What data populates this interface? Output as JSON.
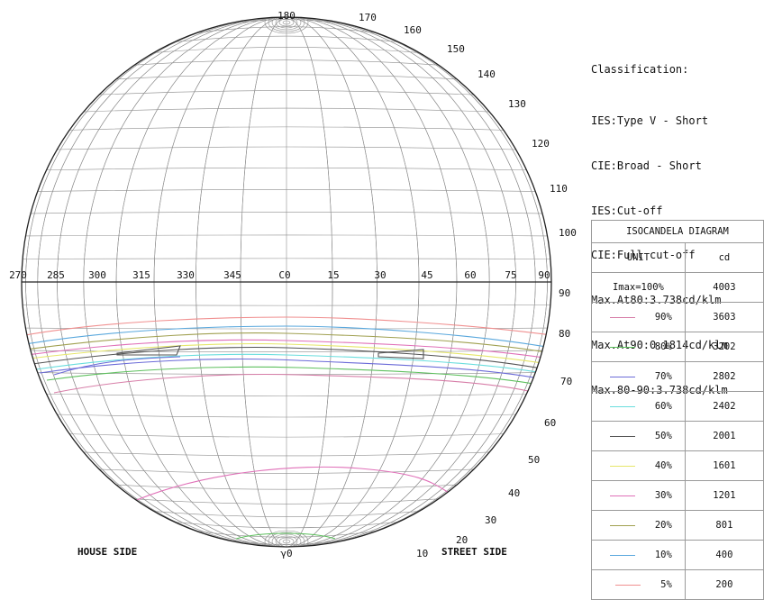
{
  "diagram": {
    "top_label": "180",
    "bottom_label": "γ0",
    "house_side": "HOUSE SIDE",
    "street_side": "STREET SIDE",
    "c_labels": [
      "270",
      "285",
      "300",
      "315",
      "330",
      "345",
      "C0",
      "15",
      "30",
      "45",
      "60",
      "75",
      "90"
    ],
    "gamma_labels": [
      "170",
      "160",
      "150",
      "140",
      "130",
      "120",
      "110",
      "100",
      "90",
      "80",
      "70",
      "60",
      "50",
      "40",
      "30",
      "20",
      "10"
    ]
  },
  "classification": {
    "title": "Classification:",
    "lines": [
      "IES:Type V - Short",
      "CIE:Broad - Short",
      "IES:Cut-off",
      "CIE:Full cut-off",
      "Max.At80:3.738cd/klm",
      "Max.At90:0.1814cd/klm",
      "Max.80-90:3.738cd/klm"
    ]
  },
  "table": {
    "title": "ISOCANDELA DIAGRAM",
    "unit_label": "UNIT",
    "unit_value": "cd",
    "imax_label": "Imax=100%",
    "imax_value": "4003",
    "rows": [
      {
        "pct": "90%",
        "cd": "3603",
        "color": "#d77ea8"
      },
      {
        "pct": "80%",
        "cd": "3202",
        "color": "#5ec05e"
      },
      {
        "pct": "70%",
        "cd": "2802",
        "color": "#6b6bd8"
      },
      {
        "pct": "60%",
        "cd": "2402",
        "color": "#6adede"
      },
      {
        "pct": "50%",
        "cd": "2001",
        "color": "#555555"
      },
      {
        "pct": "40%",
        "cd": "1601",
        "color": "#e6e66a"
      },
      {
        "pct": "30%",
        "cd": "1201",
        "color": "#e070b8"
      },
      {
        "pct": "20%",
        "cd": "801",
        "color": "#a0a050"
      },
      {
        "pct": "10%",
        "cd": "400",
        "color": "#5aa8dd"
      },
      {
        "pct": "5%",
        "cd": "200",
        "color": "#f09090"
      }
    ]
  }
}
